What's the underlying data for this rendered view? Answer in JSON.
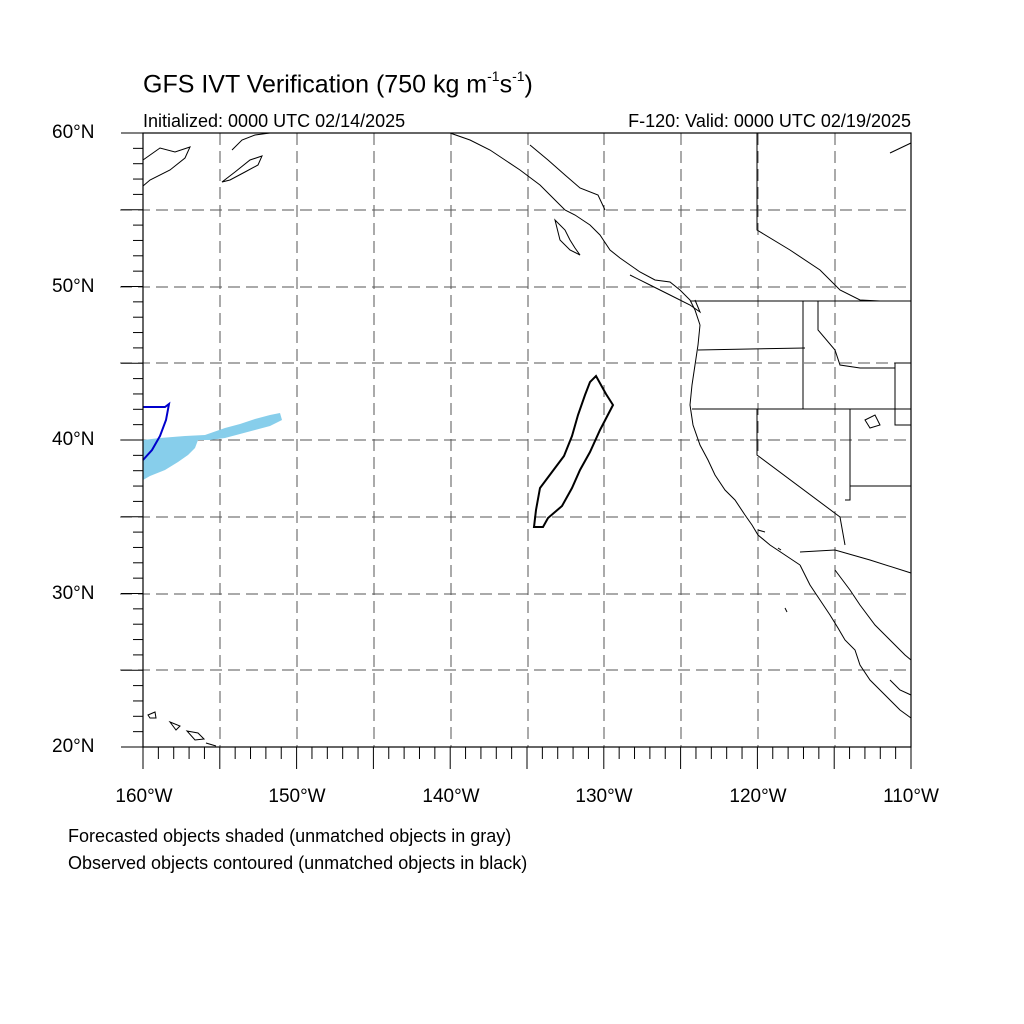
{
  "title": {
    "main": "GFS IVT Verification (750 kg m",
    "exp1": "-1",
    "mid": "s",
    "exp2": "-1",
    "close": ")"
  },
  "subtitle_left": "Initialized: 0000 UTC 02/14/2025",
  "subtitle_right": "F-120: Valid: 0000 UTC 02/19/2025",
  "lat_labels": [
    "60°N",
    "50°N",
    "40°N",
    "30°N",
    "20°N"
  ],
  "lon_labels": [
    "160°W",
    "150°W",
    "140°W",
    "130°W",
    "120°W",
    "110°W"
  ],
  "notes": [
    "Forecasted objects shaded (unmatched objects in gray)",
    "Observed objects contoured (unmatched objects in black)"
  ],
  "map_extent": {
    "lon_min": -160,
    "lon_max": -110,
    "lat_min": 20,
    "lat_max": 60
  },
  "colors": {
    "forecast_matched": "#87ceeb",
    "observed_matched": "#0000cc",
    "observed_unmatched": "#000000",
    "grid": "#555555"
  }
}
